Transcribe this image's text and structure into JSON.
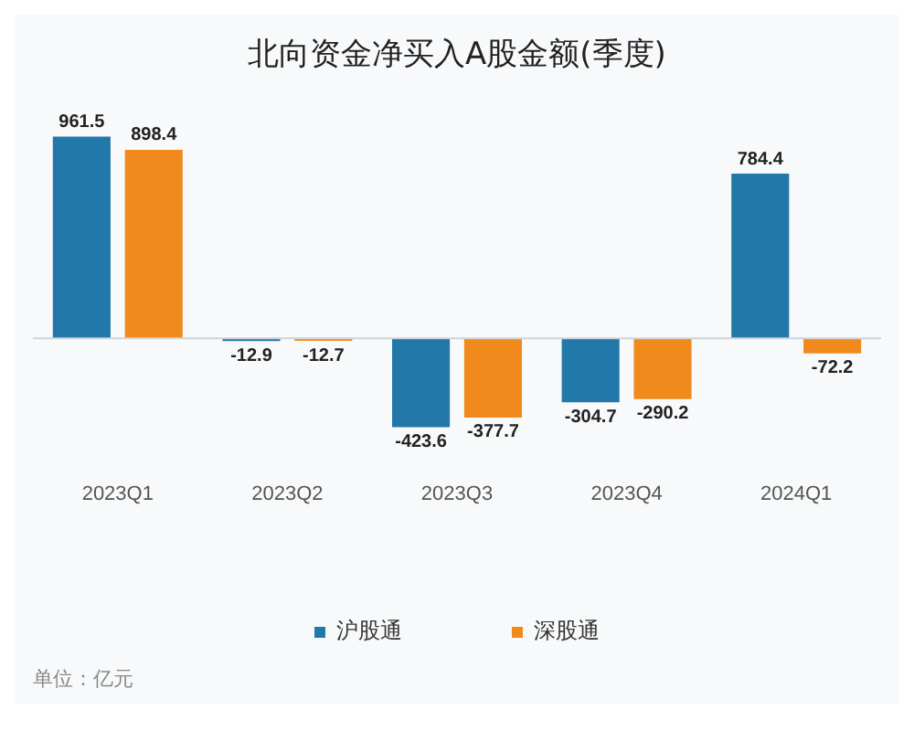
{
  "chart_data": {
    "type": "bar",
    "title": "北向资金净买入A股金额(季度)",
    "categories": [
      "2023Q1",
      "2023Q2",
      "2023Q3",
      "2023Q4",
      "2024Q1"
    ],
    "series": [
      {
        "name": "沪股通",
        "color": "#2278a8",
        "values": [
          961.5,
          -12.9,
          -423.6,
          -304.7,
          784.4
        ]
      },
      {
        "name": "深股通",
        "color": "#f08a1c",
        "values": [
          898.4,
          -12.7,
          -377.7,
          -290.2,
          -72.2
        ]
      }
    ],
    "data_labels": true,
    "legend": "bottom",
    "annotations": [
      "单位：亿元"
    ]
  }
}
